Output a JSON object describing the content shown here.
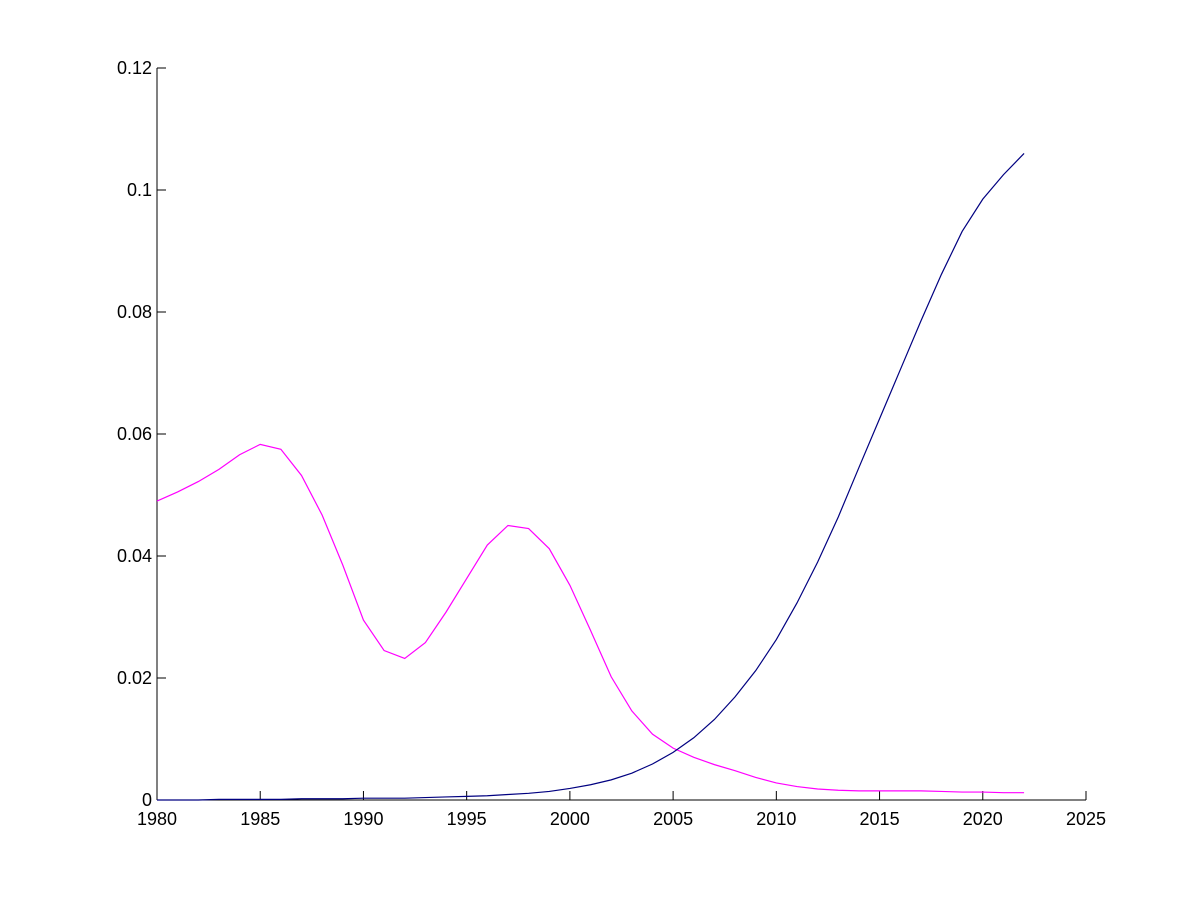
{
  "chart_data": {
    "type": "line",
    "title": "",
    "xlabel": "",
    "ylabel": "",
    "xlim": [
      1980,
      2025
    ],
    "ylim": [
      0,
      0.12
    ],
    "grid": false,
    "x_ticks": [
      1980,
      1985,
      1990,
      1995,
      2000,
      2005,
      2010,
      2015,
      2020,
      2025
    ],
    "x_tick_labels": [
      "1980",
      "1985",
      "1990",
      "1995",
      "2000",
      "2005",
      "2010",
      "2015",
      "2020",
      "2025"
    ],
    "y_ticks": [
      0,
      0.02,
      0.04,
      0.06,
      0.08,
      0.1,
      0.12
    ],
    "y_tick_labels": [
      "0",
      "0.02",
      "0.04",
      "0.06",
      "0.08",
      "0.1",
      "0.12"
    ],
    "x": [
      1980,
      1981,
      1982,
      1983,
      1984,
      1985,
      1986,
      1987,
      1988,
      1989,
      1990,
      1991,
      1992,
      1993,
      1994,
      1995,
      1996,
      1997,
      1998,
      1999,
      2000,
      2001,
      2002,
      2003,
      2004,
      2005,
      2006,
      2007,
      2008,
      2009,
      2010,
      2011,
      2012,
      2013,
      2014,
      2015,
      2016,
      2017,
      2018,
      2019,
      2020,
      2021,
      2022
    ],
    "series": [
      {
        "color": "#ff00ff",
        "values": [
          0.049,
          0.0505,
          0.0522,
          0.0542,
          0.0566,
          0.0583,
          0.0575,
          0.0532,
          0.0467,
          0.0385,
          0.0295,
          0.0245,
          0.0232,
          0.0258,
          0.0308,
          0.0363,
          0.0418,
          0.045,
          0.0445,
          0.0412,
          0.0352,
          0.0278,
          0.0202,
          0.0146,
          0.0108,
          0.0085,
          0.007,
          0.0058,
          0.0048,
          0.0037,
          0.0028,
          0.0022,
          0.0018,
          0.0016,
          0.0015,
          0.0015,
          0.0015,
          0.0015,
          0.0014,
          0.0013,
          0.0013,
          0.0012,
          0.0012
        ]
      },
      {
        "color": "#000080",
        "values": [
          0.0,
          0.0,
          0.0,
          0.0001,
          0.0001,
          0.0001,
          0.0001,
          0.0002,
          0.0002,
          0.0002,
          0.0003,
          0.0003,
          0.0003,
          0.0004,
          0.0005,
          0.0006,
          0.0007,
          0.0009,
          0.0011,
          0.0014,
          0.0019,
          0.0025,
          0.0033,
          0.0044,
          0.0059,
          0.0078,
          0.0102,
          0.0132,
          0.0169,
          0.0212,
          0.0263,
          0.0323,
          0.039,
          0.0464,
          0.0545,
          0.0625,
          0.0705,
          0.0785,
          0.0862,
          0.0932,
          0.0985,
          0.1025,
          0.106
        ]
      }
    ]
  }
}
